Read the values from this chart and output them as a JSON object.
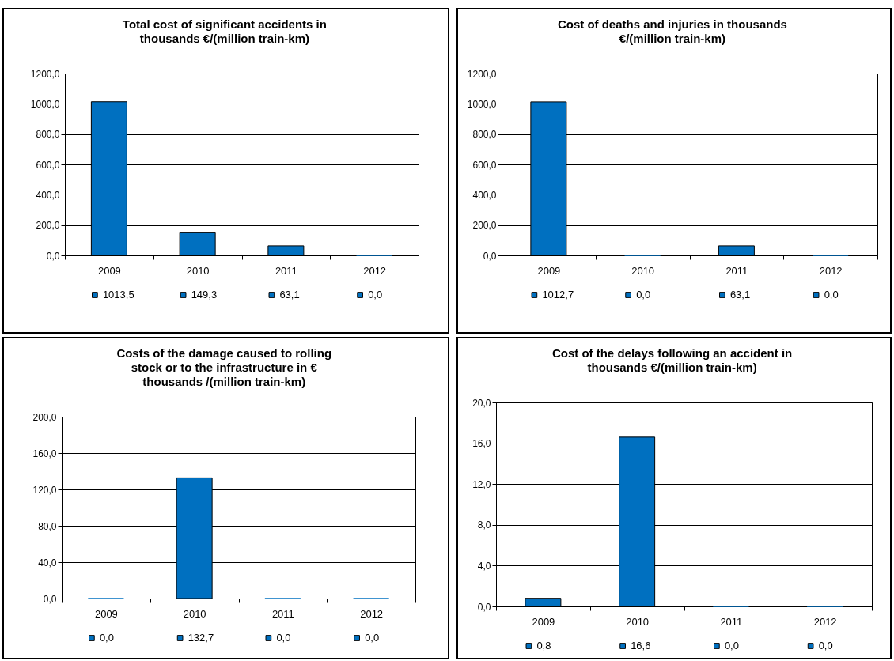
{
  "chart_data": [
    {
      "type": "bar",
      "title": "Total cost of significant accidents in\nthousands €/(million train-km)",
      "categories": [
        "2009",
        "2010",
        "2011",
        "2012"
      ],
      "values": [
        1013.5,
        149.3,
        63.1,
        0.0
      ],
      "value_labels": [
        "1013,5",
        "149,3",
        "63,1",
        "0,0"
      ],
      "color": "#0070c0",
      "ylim": [
        0,
        1200
      ],
      "yticks": [
        {
          "value": 0,
          "label": "0,0"
        },
        {
          "value": 200,
          "label": "200,0"
        },
        {
          "value": 400,
          "label": "400,0"
        },
        {
          "value": 600,
          "label": "600,0"
        },
        {
          "value": 800,
          "label": "800,0"
        },
        {
          "value": 1000,
          "label": "1000,0"
        },
        {
          "value": 1200,
          "label": "1200,0"
        }
      ],
      "grid": "y"
    },
    {
      "type": "bar",
      "title": "Cost of deaths and injuries in thousands\n€/(million train-km)",
      "categories": [
        "2009",
        "2010",
        "2011",
        "2012"
      ],
      "values": [
        1012.7,
        0.0,
        63.1,
        0.0
      ],
      "value_labels": [
        "1012,7",
        "0,0",
        "63,1",
        "0,0"
      ],
      "color": "#0070c0",
      "ylim": [
        0,
        1200
      ],
      "yticks": [
        {
          "value": 0,
          "label": "0,0"
        },
        {
          "value": 200,
          "label": "200,0"
        },
        {
          "value": 400,
          "label": "400,0"
        },
        {
          "value": 600,
          "label": "600,0"
        },
        {
          "value": 800,
          "label": "800,0"
        },
        {
          "value": 1000,
          "label": "1000,0"
        },
        {
          "value": 1200,
          "label": "1200,0"
        }
      ],
      "grid": "y"
    },
    {
      "type": "bar",
      "title": "Costs of the damage caused to rolling\nstock or to the infrastructure in €\nthousands /(million train-km)",
      "categories": [
        "2009",
        "2010",
        "2011",
        "2012"
      ],
      "values": [
        0.0,
        132.7,
        0.0,
        0.0
      ],
      "value_labels": [
        "0,0",
        "132,7",
        "0,0",
        "0,0"
      ],
      "color": "#0070c0",
      "ylim": [
        0,
        200
      ],
      "yticks": [
        {
          "value": 0,
          "label": "0,0"
        },
        {
          "value": 40,
          "label": "40,0"
        },
        {
          "value": 80,
          "label": "80,0"
        },
        {
          "value": 120,
          "label": "120,0"
        },
        {
          "value": 160,
          "label": "160,0"
        },
        {
          "value": 200,
          "label": "200,0"
        }
      ],
      "grid": "y"
    },
    {
      "type": "bar",
      "title": "Cost of the delays following an accident in\nthousands €/(million train-km)",
      "categories": [
        "2009",
        "2010",
        "2011",
        "2012"
      ],
      "values": [
        0.8,
        16.6,
        0.0,
        0.0
      ],
      "value_labels": [
        "0,8",
        "16,6",
        "0,0",
        "0,0"
      ],
      "color": "#0070c0",
      "ylim": [
        0,
        20
      ],
      "yticks": [
        {
          "value": 0,
          "label": "0,0"
        },
        {
          "value": 4,
          "label": "4,0"
        },
        {
          "value": 8,
          "label": "8,0"
        },
        {
          "value": 12,
          "label": "12,0"
        },
        {
          "value": 16,
          "label": "16,0"
        },
        {
          "value": 20,
          "label": "20,0"
        }
      ],
      "grid": "y"
    }
  ]
}
